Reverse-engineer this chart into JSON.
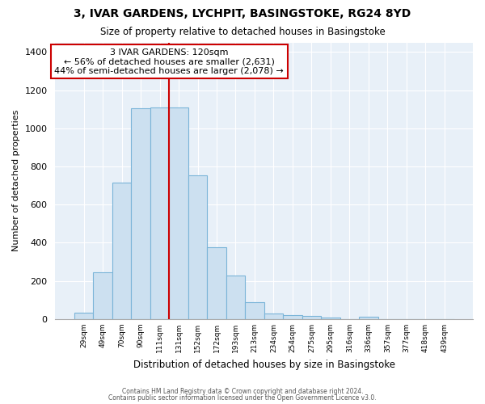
{
  "title": "3, IVAR GARDENS, LYCHPIT, BASINGSTOKE, RG24 8YD",
  "subtitle": "Size of property relative to detached houses in Basingstoke",
  "xlabel": "Distribution of detached houses by size in Basingstoke",
  "ylabel": "Number of detached properties",
  "bar_labels": [
    "29sqm",
    "49sqm",
    "70sqm",
    "90sqm",
    "111sqm",
    "131sqm",
    "152sqm",
    "172sqm",
    "193sqm",
    "213sqm",
    "234sqm",
    "254sqm",
    "275sqm",
    "295sqm",
    "316sqm",
    "336sqm",
    "357sqm",
    "377sqm",
    "418sqm",
    "439sqm"
  ],
  "bar_values": [
    35,
    245,
    715,
    1105,
    1110,
    1110,
    755,
    375,
    230,
    90,
    30,
    22,
    18,
    8,
    0,
    12,
    0,
    0,
    0,
    0
  ],
  "bar_color": "#cce0f0",
  "bar_edge_color": "#7ab4d8",
  "vline_x": 5,
  "vline_color": "#cc0000",
  "annotation_title": "3 IVAR GARDENS: 120sqm",
  "annotation_line1": "← 56% of detached houses are smaller (2,631)",
  "annotation_line2": "44% of semi-detached houses are larger (2,078) →",
  "annotation_box_facecolor": "#ffffff",
  "annotation_box_edgecolor": "#cc0000",
  "ylim": [
    0,
    1450
  ],
  "yticks": [
    0,
    200,
    400,
    600,
    800,
    1000,
    1200,
    1400
  ],
  "footnote1": "Contains HM Land Registry data © Crown copyright and database right 2024.",
  "footnote2": "Contains public sector information licensed under the Open Government Licence v3.0.",
  "background_color": "#ffffff",
  "plot_bg_color": "#e8f0f8",
  "grid_color": "#ffffff"
}
